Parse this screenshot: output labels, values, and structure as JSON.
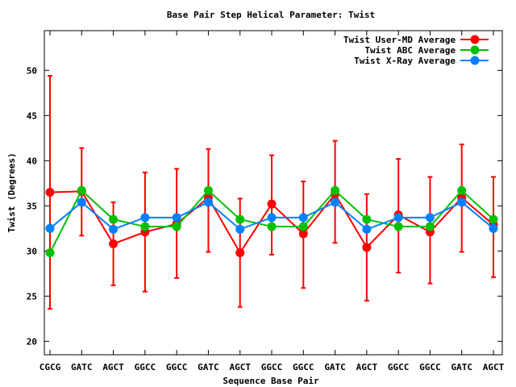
{
  "chart_data": {
    "type": "line",
    "title": "Base Pair Step Helical Parameter: Twist",
    "xlabel": "Sequence Base Pair",
    "ylabel": "Twist (Degrees)",
    "ylim": [
      18.5,
      54.5
    ],
    "yticks": [
      20,
      25,
      30,
      35,
      40,
      45,
      50
    ],
    "categories": [
      "CGCG",
      "GATC",
      "AGCT",
      "GGCC",
      "GGCC",
      "GATC",
      "AGCT",
      "GGCC",
      "GGCC",
      "GATC",
      "AGCT",
      "GGCC",
      "GGCC",
      "GATC",
      "AGCT"
    ],
    "grid": false,
    "legend_position": "top-right",
    "series": [
      {
        "name": "Twist User-MD Average",
        "color": "#ff0000",
        "values": [
          36.5,
          36.6,
          30.8,
          32.1,
          33.0,
          35.9,
          29.8,
          35.2,
          31.9,
          36.3,
          30.4,
          34.0,
          32.1,
          35.9,
          32.9
        ],
        "error_high": [
          49.4,
          41.4,
          35.4,
          38.7,
          39.1,
          41.3,
          35.8,
          40.6,
          37.7,
          42.2,
          36.3,
          40.2,
          38.2,
          41.8,
          38.2
        ],
        "error_low": [
          23.6,
          31.7,
          26.2,
          25.5,
          27.0,
          29.9,
          23.8,
          29.6,
          25.9,
          30.9,
          24.5,
          27.6,
          26.4,
          29.9,
          27.1
        ]
      },
      {
        "name": "Twist ABC Average",
        "color": "#00c000",
        "values": [
          29.8,
          36.7,
          33.5,
          32.7,
          32.7,
          36.7,
          33.5,
          32.7,
          32.7,
          36.7,
          33.5,
          32.7,
          32.7,
          36.7,
          33.5
        ]
      },
      {
        "name": "Twist X-Ray Average",
        "color": "#0080ff",
        "values": [
          32.5,
          35.4,
          32.4,
          33.7,
          33.7,
          35.4,
          32.4,
          33.7,
          33.7,
          35.4,
          32.4,
          33.7,
          33.7,
          35.4,
          32.5
        ]
      }
    ]
  }
}
